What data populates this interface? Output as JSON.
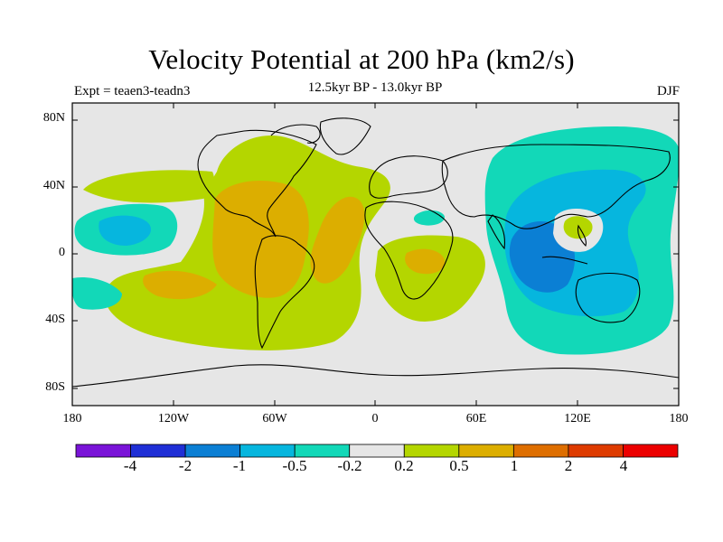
{
  "title": "Velocity Potential at 200 hPa (km2/s)",
  "subtitle": "12.5kyr BP - 13.0kyr BP",
  "experiment": "Expt = teaen3-teadn3",
  "season": "DJF",
  "lat_labels": [
    "80N",
    "40N",
    "0",
    "40S",
    "80S"
  ],
  "lon_labels": [
    "180",
    "120W",
    "60W",
    "0",
    "60E",
    "120E",
    "180"
  ],
  "colorbar": {
    "labels": [
      "-4",
      "-2",
      "-1",
      "-0.5",
      "-0.2",
      "0.2",
      "0.5",
      "1",
      "2",
      "4"
    ],
    "colors": [
      "#7a14d8",
      "#1f2fd6",
      "#0b7fd4",
      "#06b6de",
      "#12d8b8",
      "#e6e6e6",
      "#b4d600",
      "#dcae00",
      "#de6e00",
      "#de3b00",
      "#ec0000"
    ]
  }
}
